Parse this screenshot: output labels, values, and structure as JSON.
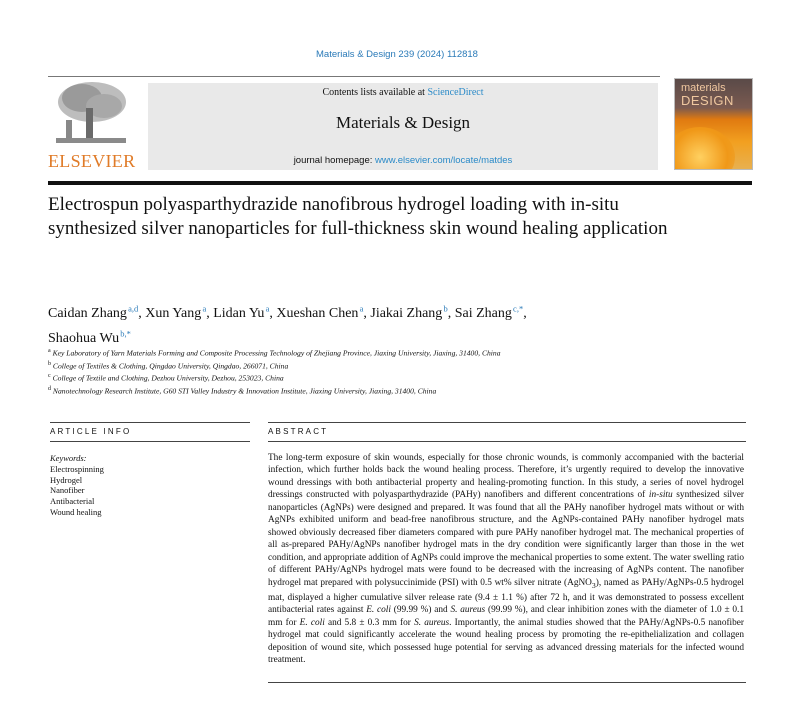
{
  "header": {
    "citation": "Materials & Design 239 (2024) 112818",
    "contents_prefix": "Contents lists available at ",
    "contents_link": "ScienceDirect",
    "journal_title": "Materials & Design",
    "homepage_prefix": "journal homepage: ",
    "homepage_link": "www.elsevier.com/locate/matdes",
    "publisher_logo": "ELSEVIER",
    "cover_title_line1": "materials",
    "cover_title_line2": "DESIGN"
  },
  "article": {
    "title": "Electrospun polyasparthydrazide nanofibrous hydrogel loading with in-situ synthesized silver nanoparticles for full-thickness skin wound healing application",
    "authors": [
      {
        "name": "Caidan Zhang",
        "sup": "a,d",
        "sep": ", "
      },
      {
        "name": "Xun Yang",
        "sup": "a",
        "sep": ", "
      },
      {
        "name": "Lidan Yu",
        "sup": "a",
        "sep": ", "
      },
      {
        "name": "Xueshan Chen",
        "sup": "a",
        "sep": ", "
      },
      {
        "name": "Jiakai Zhang",
        "sup": "b",
        "sep": ", "
      },
      {
        "name": "Sai Zhang",
        "sup": "c,*",
        "sep": ", "
      },
      {
        "name": "Shaohua Wu",
        "sup": "b,*",
        "sep": ""
      }
    ],
    "affiliations": [
      {
        "label": "a",
        "text": "Key Laboratory of Yarn Materials Forming and Composite Processing Technology of Zhejiang Province, Jiaxing University, Jiaxing, 31400, China"
      },
      {
        "label": "b",
        "text": "College of Textiles & Clothing, Qingdao University, Qingdao, 266071, China"
      },
      {
        "label": "c",
        "text": "College of Textile and Clothing, Dezhou University, Dezhou, 253023, China"
      },
      {
        "label": "d",
        "text": "Nanotechnology Research Institute, G60 STI Valley Industry & Innovation Institute, Jiaxing University, Jiaxing, 31400, China"
      }
    ]
  },
  "article_info": {
    "heading": "ARTICLE INFO",
    "keywords_label": "Keywords:",
    "keywords": [
      "Electrospinning",
      "Hydrogel",
      "Nanofiber",
      "Antibacterial",
      "Wound healing"
    ]
  },
  "abstract": {
    "heading": "ABSTRACT",
    "segments": [
      {
        "text": "The long-term exposure of skin wounds, especially for those chronic wounds, is commonly accompanied with the bacterial infection, which further holds back the wound healing process. Therefore, it’s urgently required to develop the innovative wound dressings with both antibacterial property and healing-promoting function. In this study, a series of novel hydrogel dressings constructed with polyasparthydrazide (PAHy) nanofibers and different concentrations of ",
        "style": "n"
      },
      {
        "text": "in-situ",
        "style": "i"
      },
      {
        "text": " synthesized silver nanoparticles (AgNPs) were designed and prepared. It was found that all the PAHy nanofiber hydrogel mats without or with AgNPs exhibited uniform and bead-free nanofibrous structure, and the AgNPs-contained PAHy nanofiber hydrogel mats showed obviously decreased fiber diameters compared with pure PAHy nanofiber hydrogel mat. The mechanical properties of all as-prepared PAHy/AgNPs nanofiber hydrogel mats in the dry condition were significantly larger than those in the wet condition, and appropriate addition of AgNPs could improve the mechanical properties to some extent. The water swelling ratio of different PAHy/AgNPs hydrogel mats were found to be decreased with the increasing of AgNPs content. The nanofiber hydrogel mat prepared with polysuccinimide (PSI) with 0.5 wt% silver nitrate (AgNO",
        "style": "n"
      },
      {
        "text": "3",
        "style": "sub"
      },
      {
        "text": "), named as PAHy/AgNPs-0.5 hydrogel mat, displayed a higher cumulative silver release rate (9.4 ± 1.1 %) after 72 h, and it was demonstrated to possess excellent antibacterial rates against ",
        "style": "n"
      },
      {
        "text": "E. coli",
        "style": "i"
      },
      {
        "text": " (99.99 %) and ",
        "style": "n"
      },
      {
        "text": "S. aureus",
        "style": "i"
      },
      {
        "text": " (99.99 %), and clear inhibition zones with the diameter of 1.0 ± 0.1 mm for ",
        "style": "n"
      },
      {
        "text": "E. coli",
        "style": "i"
      },
      {
        "text": " and 5.8 ± 0.3 mm for ",
        "style": "n"
      },
      {
        "text": "S. aureus",
        "style": "i"
      },
      {
        "text": ". Importantly, the animal studies showed that the PAHy/AgNPs-0.5 nanofiber hydrogel mat could significantly accelerate the wound healing process by promoting the re-epithelialization and collagen deposition of wound site, which possessed huge potential for serving as advanced dressing materials for the infected wound treatment.",
        "style": "n"
      }
    ]
  }
}
